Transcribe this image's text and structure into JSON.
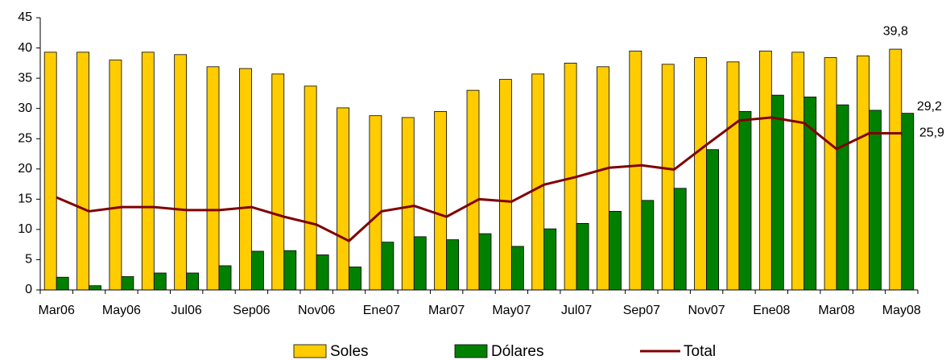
{
  "chart_data": {
    "type": "bar",
    "categories": [
      "Mar06",
      null,
      "May06",
      null,
      "Jul06",
      null,
      "Sep06",
      null,
      "Nov06",
      null,
      "Ene07",
      null,
      "Mar07",
      null,
      "May07",
      null,
      "Jul07",
      null,
      "Sep07",
      null,
      "Nov07",
      null,
      "Ene08",
      null,
      "Mar08",
      null,
      "May08"
    ],
    "series": [
      {
        "name": "Soles",
        "type": "bar",
        "color": "#ffcc00",
        "values": [
          39.3,
          39.3,
          38,
          39.3,
          38.9,
          36.9,
          36.6,
          35.7,
          33.7,
          30.1,
          28.8,
          28.5,
          29.5,
          33,
          34.8,
          35.7,
          37.5,
          36.9,
          39.5,
          37.3,
          38.4,
          37.7,
          39.5,
          39.3,
          38.4,
          38.7,
          39.8
        ],
        "value_labels": [
          null,
          null,
          null,
          null,
          null,
          null,
          null,
          null,
          null,
          null,
          null,
          null,
          null,
          null,
          null,
          null,
          null,
          null,
          null,
          null,
          null,
          null,
          null,
          null,
          null,
          null,
          "39,8"
        ]
      },
      {
        "name": "Dólares",
        "type": "bar",
        "color": "#008000",
        "values": [
          2.1,
          0.7,
          2.2,
          2.8,
          2.8,
          4,
          6.4,
          6.5,
          5.8,
          3.8,
          7.9,
          8.8,
          8.3,
          9.3,
          7.2,
          10.1,
          11,
          13,
          14.8,
          16.8,
          23.2,
          29.5,
          32.2,
          31.9,
          30.6,
          29.7,
          29.2
        ],
        "value_labels": [
          null,
          null,
          null,
          null,
          null,
          null,
          null,
          null,
          null,
          null,
          null,
          null,
          null,
          null,
          null,
          null,
          null,
          null,
          null,
          null,
          null,
          null,
          null,
          null,
          null,
          null,
          "29,2"
        ]
      },
      {
        "name": "Total",
        "type": "line",
        "color": "#800000",
        "values": [
          15.3,
          13,
          13.7,
          13.7,
          13.2,
          13.2,
          13.7,
          12.1,
          10.8,
          8.1,
          13,
          13.9,
          12.1,
          15,
          14.6,
          17.4,
          18.7,
          20.2,
          20.6,
          19.9,
          24,
          28,
          28.5,
          27.6,
          23.3,
          25.9,
          25.9
        ],
        "value_labels": [
          null,
          null,
          null,
          null,
          null,
          null,
          null,
          null,
          null,
          null,
          null,
          null,
          null,
          null,
          null,
          null,
          null,
          null,
          null,
          null,
          null,
          null,
          null,
          null,
          null,
          null,
          "25,9"
        ]
      }
    ],
    "ylim": [
      0,
      45
    ],
    "yticks": [
      0,
      5,
      10,
      15,
      20,
      25,
      30,
      35,
      40,
      45
    ],
    "grid": false,
    "legend": "bottom"
  }
}
